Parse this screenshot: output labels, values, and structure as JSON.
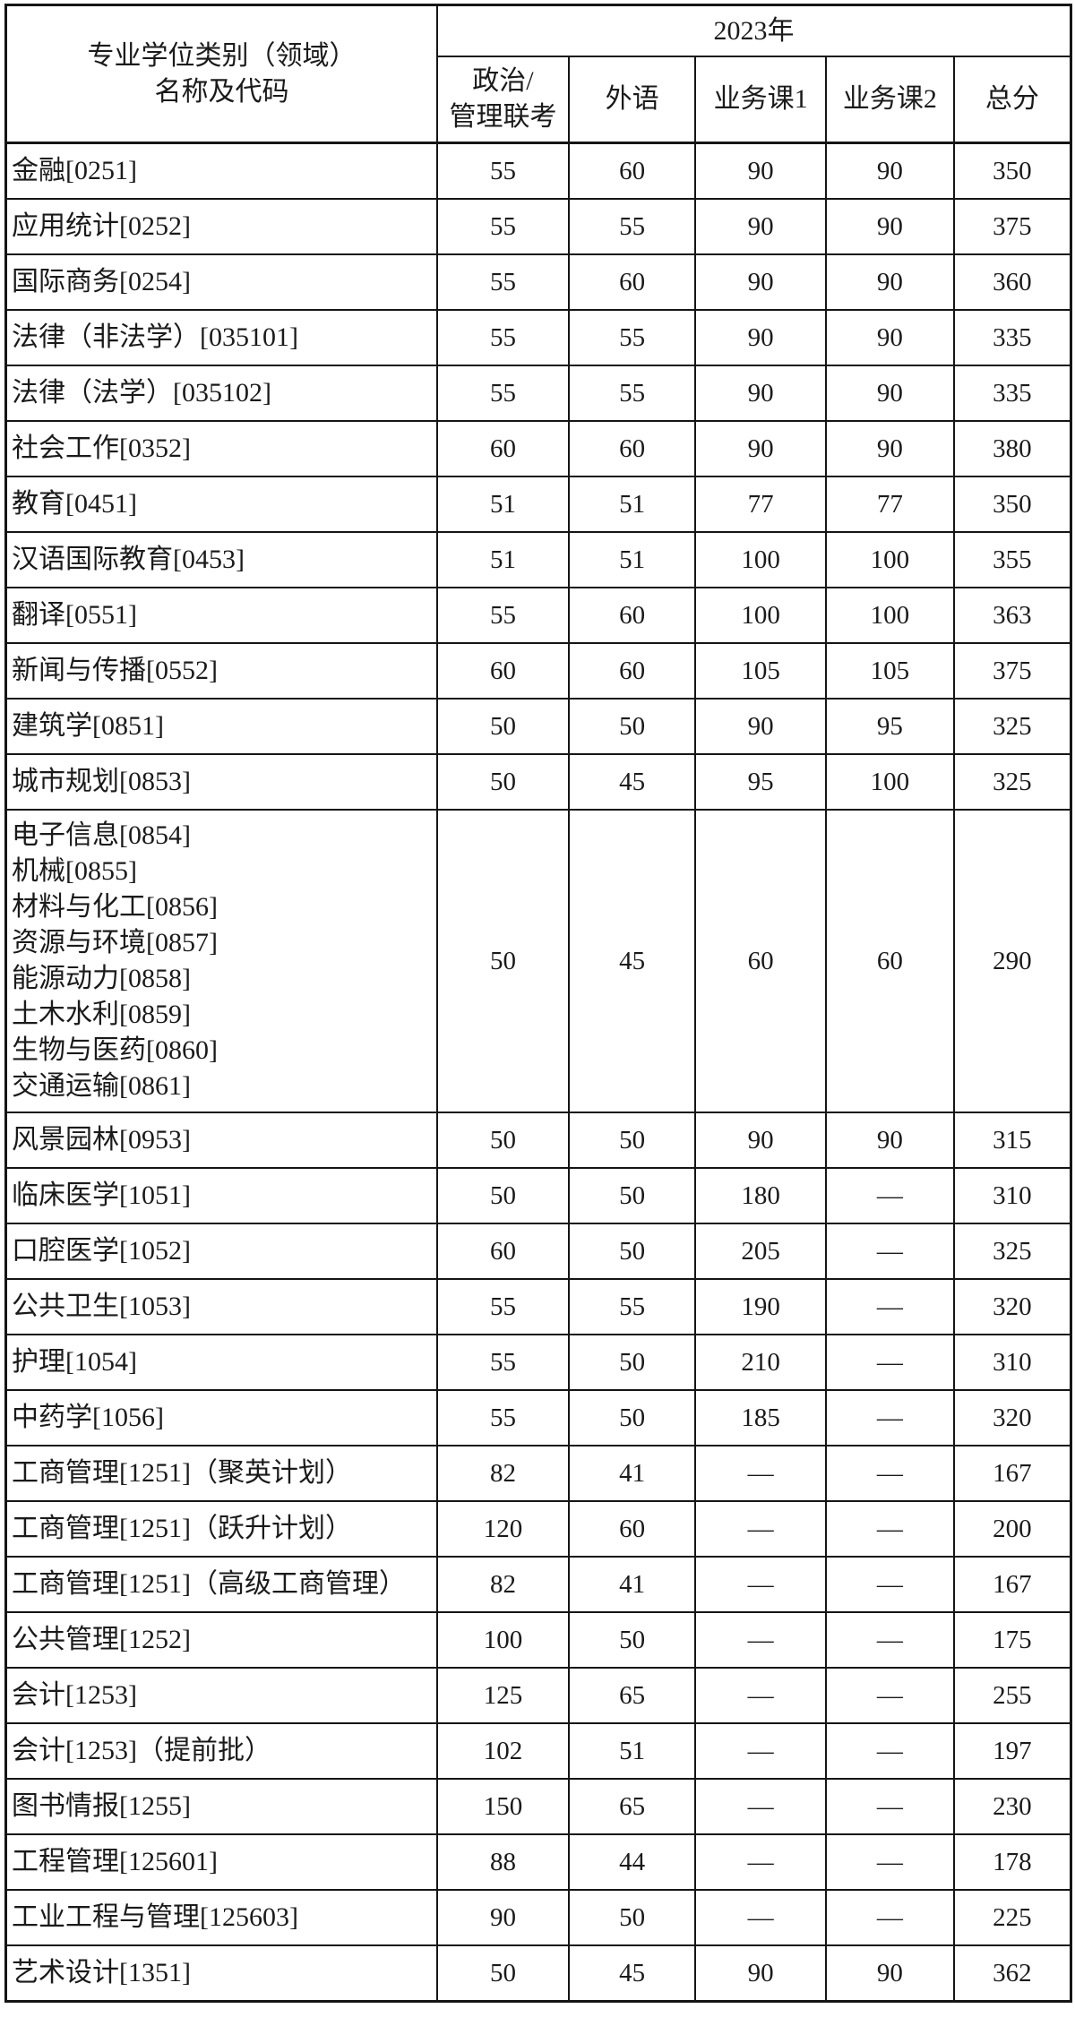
{
  "table": {
    "header": {
      "major_line1": "专业学位类别（领域）",
      "major_line2": "名称及代码",
      "year": "2023年",
      "columns": [
        "政治/\n管理联考",
        "外语",
        "业务课1",
        "业务课2",
        "总分"
      ]
    },
    "rows": [
      {
        "major": [
          "金融[0251]"
        ],
        "scores": [
          "55",
          "60",
          "90",
          "90",
          "350"
        ]
      },
      {
        "major": [
          "应用统计[0252]"
        ],
        "scores": [
          "55",
          "55",
          "90",
          "90",
          "375"
        ]
      },
      {
        "major": [
          "国际商务[0254]"
        ],
        "scores": [
          "55",
          "60",
          "90",
          "90",
          "360"
        ]
      },
      {
        "major": [
          "法律（非法学）[035101]"
        ],
        "scores": [
          "55",
          "55",
          "90",
          "90",
          "335"
        ]
      },
      {
        "major": [
          "法律（法学）[035102]"
        ],
        "scores": [
          "55",
          "55",
          "90",
          "90",
          "335"
        ]
      },
      {
        "major": [
          "社会工作[0352]"
        ],
        "scores": [
          "60",
          "60",
          "90",
          "90",
          "380"
        ]
      },
      {
        "major": [
          "教育[0451]"
        ],
        "scores": [
          "51",
          "51",
          "77",
          "77",
          "350"
        ]
      },
      {
        "major": [
          "汉语国际教育[0453]"
        ],
        "scores": [
          "51",
          "51",
          "100",
          "100",
          "355"
        ]
      },
      {
        "major": [
          "翻译[0551]"
        ],
        "scores": [
          "55",
          "60",
          "100",
          "100",
          "363"
        ]
      },
      {
        "major": [
          "新闻与传播[0552]"
        ],
        "scores": [
          "60",
          "60",
          "105",
          "105",
          "375"
        ]
      },
      {
        "major": [
          "建筑学[0851]"
        ],
        "scores": [
          "50",
          "50",
          "90",
          "95",
          "325"
        ]
      },
      {
        "major": [
          "城市规划[0853]"
        ],
        "scores": [
          "50",
          "45",
          "95",
          "100",
          "325"
        ]
      },
      {
        "major": [
          "电子信息[0854]",
          "机械[0855]",
          "材料与化工[0856]",
          "资源与环境[0857]",
          "能源动力[0858]",
          "土木水利[0859]",
          "生物与医药[0860]",
          "交通运输[0861]"
        ],
        "scores": [
          "50",
          "45",
          "60",
          "60",
          "290"
        ]
      },
      {
        "major": [
          "风景园林[0953]"
        ],
        "scores": [
          "50",
          "50",
          "90",
          "90",
          "315"
        ]
      },
      {
        "major": [
          "临床医学[1051]"
        ],
        "scores": [
          "50",
          "50",
          "180",
          "—",
          "310"
        ]
      },
      {
        "major": [
          "口腔医学[1052]"
        ],
        "scores": [
          "60",
          "50",
          "205",
          "—",
          "325"
        ]
      },
      {
        "major": [
          "公共卫生[1053]"
        ],
        "scores": [
          "55",
          "55",
          "190",
          "—",
          "320"
        ]
      },
      {
        "major": [
          "护理[1054]"
        ],
        "scores": [
          "55",
          "50",
          "210",
          "—",
          "310"
        ]
      },
      {
        "major": [
          "中药学[1056]"
        ],
        "scores": [
          "55",
          "50",
          "185",
          "—",
          "320"
        ]
      },
      {
        "major": [
          "工商管理[1251]（聚英计划）"
        ],
        "scores": [
          "82",
          "41",
          "—",
          "—",
          "167"
        ]
      },
      {
        "major": [
          "工商管理[1251]（跃升计划）"
        ],
        "scores": [
          "120",
          "60",
          "—",
          "—",
          "200"
        ]
      },
      {
        "major": [
          "工商管理[1251]（高级工商管理）"
        ],
        "scores": [
          "82",
          "41",
          "—",
          "—",
          "167"
        ]
      },
      {
        "major": [
          "公共管理[1252]"
        ],
        "scores": [
          "100",
          "50",
          "—",
          "—",
          "175"
        ]
      },
      {
        "major": [
          "会计[1253]"
        ],
        "scores": [
          "125",
          "65",
          "—",
          "—",
          "255"
        ]
      },
      {
        "major": [
          "会计[1253]（提前批）"
        ],
        "scores": [
          "102",
          "51",
          "—",
          "—",
          "197"
        ]
      },
      {
        "major": [
          "图书情报[1255]"
        ],
        "scores": [
          "150",
          "65",
          "—",
          "—",
          "230"
        ]
      },
      {
        "major": [
          "工程管理[125601]"
        ],
        "scores": [
          "88",
          "44",
          "—",
          "—",
          "178"
        ]
      },
      {
        "major": [
          "工业工程与管理[125603]"
        ],
        "scores": [
          "90",
          "50",
          "—",
          "—",
          "225"
        ]
      },
      {
        "major": [
          "艺术设计[1351]"
        ],
        "scores": [
          "50",
          "45",
          "90",
          "90",
          "362"
        ]
      }
    ]
  }
}
